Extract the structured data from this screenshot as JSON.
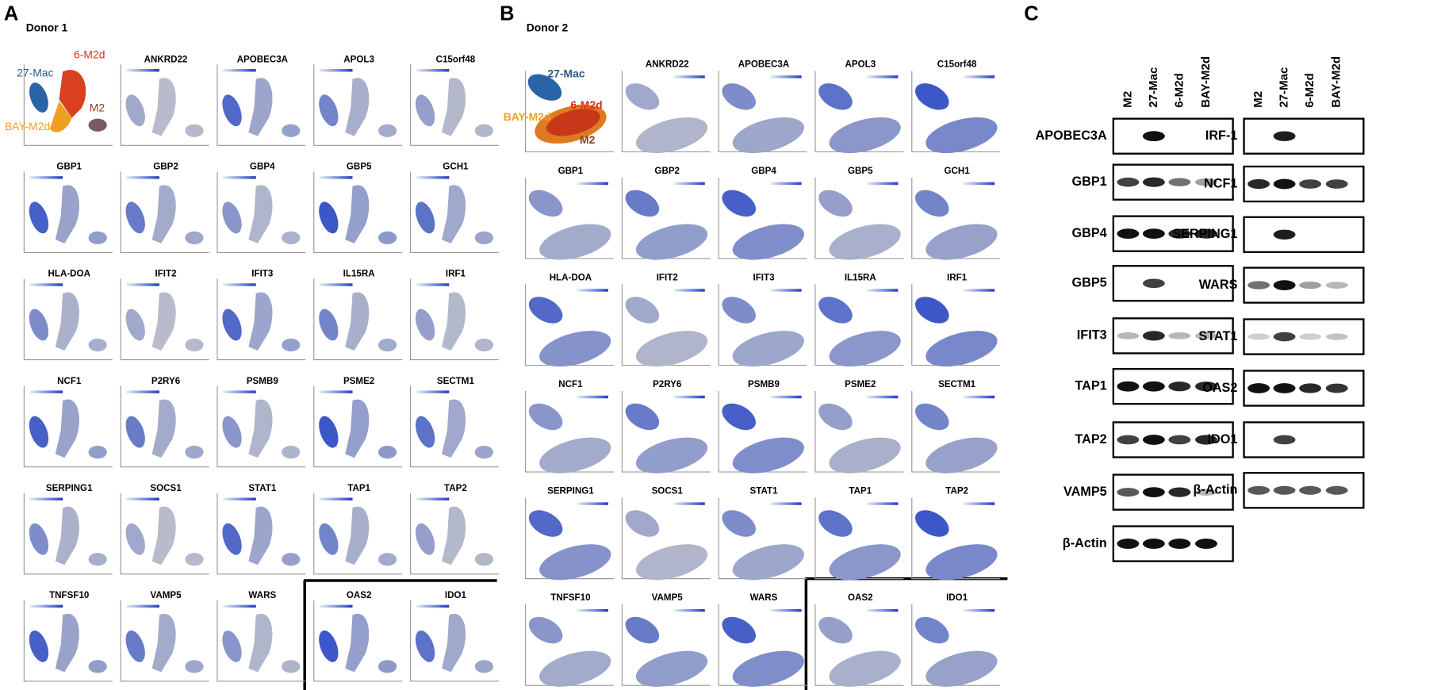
{
  "panels": {
    "A": {
      "letter": "A",
      "title": "Donor 1",
      "clusters": [
        "27-Mac",
        "6-M2d",
        "BAY-M2d",
        "M2"
      ],
      "genes": [
        "ANKRD22",
        "APOBEC3A",
        "APOL3",
        "C15orf48",
        "GBP1",
        "GBP2",
        "GBP4",
        "GBP5",
        "GCH1",
        "HLA-DOA",
        "IFIT2",
        "IFIT3",
        "IL15RA",
        "IRF1",
        "NCF1",
        "P2RY6",
        "PSMB9",
        "PSME2",
        "SECTM1",
        "SERPING1",
        "SOCS1",
        "STAT1",
        "TAP1",
        "TAP2",
        "TNFSF10",
        "VAMP5",
        "WARS",
        "OAS2",
        "IDO1"
      ]
    },
    "B": {
      "letter": "B",
      "title": "Donor 2",
      "clusters": [
        "27-Mac",
        "6-M2d",
        "BAY-M2d",
        "M2"
      ],
      "genes": [
        "ANKRD22",
        "APOBEC3A",
        "APOL3",
        "C15orf48",
        "GBP1",
        "GBP2",
        "GBP4",
        "GBP5",
        "GCH1",
        "HLA-DOA",
        "IFIT2",
        "IFIT3",
        "IL15RA",
        "IRF1",
        "NCF1",
        "P2RY6",
        "PSMB9",
        "PSME2",
        "SECTM1",
        "SERPING1",
        "SOCS1",
        "STAT1",
        "TAP1",
        "TAP2",
        "TNFSF10",
        "VAMP5",
        "WARS",
        "OAS2",
        "IDO1"
      ]
    },
    "C": {
      "letter": "C",
      "lanes": [
        "M2",
        "27-Mac",
        "6-M2d",
        "BAY-M2d"
      ],
      "left": [
        "APOBEC3A",
        "GBP1",
        "GBP4",
        "GBP5",
        "IFIT3",
        "TAP1",
        "TAP2",
        "VAMP5",
        "β-Actin"
      ],
      "right": [
        "IRF-1",
        "NCF1",
        "SERPING1",
        "WARS",
        "STAT1",
        "OAS2",
        "IDO1",
        "β-Actin"
      ]
    }
  }
}
